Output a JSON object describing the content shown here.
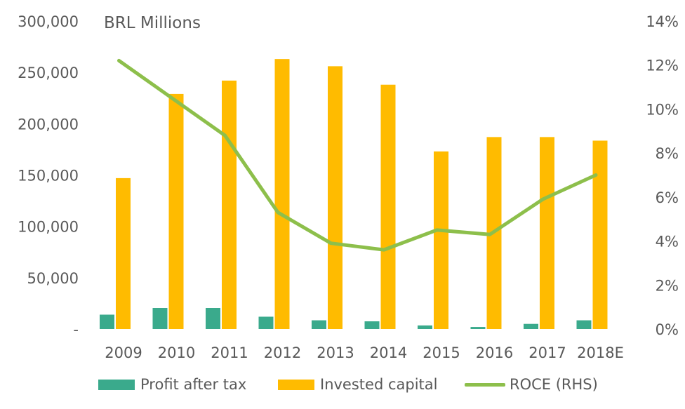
{
  "chart_data": {
    "type": "bar",
    "unit_label": "BRL Millions",
    "categories": [
      "2009",
      "2010",
      "2011",
      "2012",
      "2013",
      "2014",
      "2015",
      "2016",
      "2017",
      "2018E"
    ],
    "series": [
      {
        "name": "Profit after tax",
        "type": "bar",
        "axis": "left",
        "color": "#3aaa8c",
        "values": [
          14000,
          20500,
          20500,
          12000,
          8500,
          7500,
          3500,
          2000,
          5000,
          8500
        ]
      },
      {
        "name": "Invested capital",
        "type": "bar",
        "axis": "left",
        "color": "#ffbb00",
        "values": [
          147000,
          229000,
          242000,
          263000,
          256000,
          238000,
          173000,
          187000,
          187000,
          183500
        ]
      },
      {
        "name": "ROCE (RHS)",
        "type": "line",
        "axis": "right",
        "color": "#8dbf4b",
        "values": [
          12.2,
          10.5,
          8.8,
          5.3,
          3.9,
          3.6,
          4.5,
          4.3,
          5.9,
          7.0
        ]
      }
    ],
    "y_left": {
      "min": 0,
      "max": 300000,
      "ticks": [
        300000,
        250000,
        200000,
        150000,
        100000,
        50000,
        0
      ],
      "tick_labels": [
        "300,000",
        "250,000",
        "200,000",
        "150,000",
        "100,000",
        "50,000",
        "-"
      ]
    },
    "y_right": {
      "min": 0,
      "max": 14,
      "ticks": [
        14,
        12,
        10,
        8,
        6,
        4,
        2,
        0
      ],
      "tick_labels": [
        "14%",
        "12%",
        "10%",
        "8%",
        "6%",
        "4%",
        "2%",
        "0%"
      ]
    },
    "grid": false,
    "legend_position": "bottom"
  }
}
